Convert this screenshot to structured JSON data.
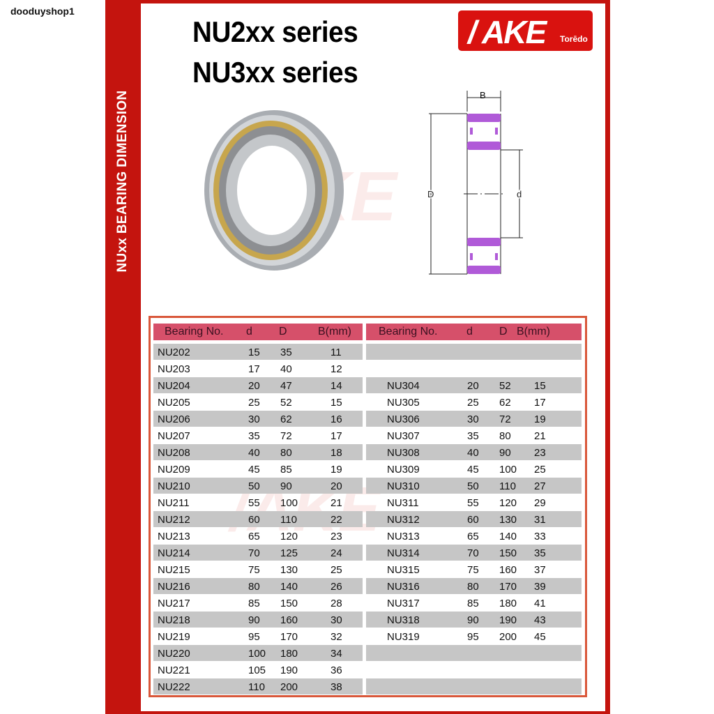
{
  "shop_name": "dooduyshop1",
  "side_label": "NUxx BEARING DIMENSION",
  "titles": [
    "NU2xx series",
    "NU3xx series"
  ],
  "logo": {
    "text": "AKE",
    "sub": "Torēdo",
    "color": "#d9120f"
  },
  "diagram": {
    "labels": {
      "B": "B",
      "D": "D",
      "d": "d"
    },
    "color": "#b05ad8"
  },
  "colors": {
    "frame": "#c4140e",
    "header": "#d6506a",
    "row_alt": "#c6c6c6",
    "table_border": "#d9573a"
  },
  "table": {
    "headers": [
      "Bearing No.",
      "d",
      "D",
      "B(mm)"
    ],
    "left": [
      [
        "NU202",
        "15",
        "35",
        "11"
      ],
      [
        "NU203",
        "17",
        "40",
        "12"
      ],
      [
        "NU204",
        "20",
        "47",
        "14"
      ],
      [
        "NU205",
        "25",
        "52",
        "15"
      ],
      [
        "NU206",
        "30",
        "62",
        "16"
      ],
      [
        "NU207",
        "35",
        "72",
        "17"
      ],
      [
        "NU208",
        "40",
        "80",
        "18"
      ],
      [
        "NU209",
        "45",
        "85",
        "19"
      ],
      [
        "NU210",
        "50",
        "90",
        "20"
      ],
      [
        "NU211",
        "55",
        "100",
        "21"
      ],
      [
        "NU212",
        "60",
        "110",
        "22"
      ],
      [
        "NU213",
        "65",
        "120",
        "23"
      ],
      [
        "NU214",
        "70",
        "125",
        "24"
      ],
      [
        "NU215",
        "75",
        "130",
        "25"
      ],
      [
        "NU216",
        "80",
        "140",
        "26"
      ],
      [
        "NU217",
        "85",
        "150",
        "28"
      ],
      [
        "NU218",
        "90",
        "160",
        "30"
      ],
      [
        "NU219",
        "95",
        "170",
        "32"
      ],
      [
        "NU220",
        "100",
        "180",
        "34"
      ],
      [
        "NU221",
        "105",
        "190",
        "36"
      ],
      [
        "NU222",
        "110",
        "200",
        "38"
      ]
    ],
    "right": [
      [
        "",
        "",
        "",
        ""
      ],
      [
        "",
        "",
        "",
        ""
      ],
      [
        "NU304",
        "20",
        "52",
        "15"
      ],
      [
        "NU305",
        "25",
        "62",
        "17"
      ],
      [
        "NU306",
        "30",
        "72",
        "19"
      ],
      [
        "NU307",
        "35",
        "80",
        "21"
      ],
      [
        "NU308",
        "40",
        "90",
        "23"
      ],
      [
        "NU309",
        "45",
        "100",
        "25"
      ],
      [
        "NU310",
        "50",
        "110",
        "27"
      ],
      [
        "NU311",
        "55",
        "120",
        "29"
      ],
      [
        "NU312",
        "60",
        "130",
        "31"
      ],
      [
        "NU313",
        "65",
        "140",
        "33"
      ],
      [
        "NU314",
        "70",
        "150",
        "35"
      ],
      [
        "NU315",
        "75",
        "160",
        "37"
      ],
      [
        "NU316",
        "80",
        "170",
        "39"
      ],
      [
        "NU317",
        "85",
        "180",
        "41"
      ],
      [
        "NU318",
        "90",
        "190",
        "43"
      ],
      [
        "NU319",
        "95",
        "200",
        "45"
      ],
      [
        "",
        "",
        "",
        ""
      ],
      [
        "",
        "",
        "",
        ""
      ],
      [
        "",
        "",
        "",
        ""
      ]
    ]
  }
}
